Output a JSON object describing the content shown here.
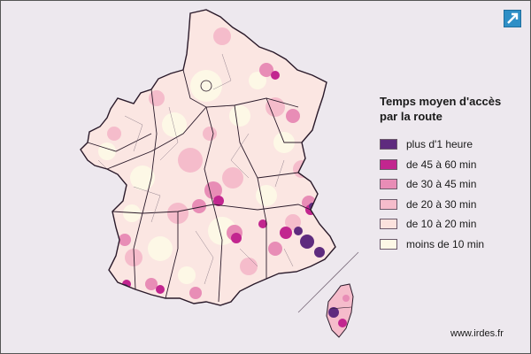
{
  "map": {
    "name": "France",
    "classes": [
      {
        "label": "plus d'1 heure",
        "color": "#5e2b7e"
      },
      {
        "label": "de 45 à 60 min",
        "color": "#c2268f"
      },
      {
        "label": "de 30 à 45 min",
        "color": "#e88db6"
      },
      {
        "label": "de 20 à 30 min",
        "color": "#f5bccb"
      },
      {
        "label": "de 10 à 20 min",
        "color": "#fbe2dd"
      },
      {
        "label": "moins de 10 min",
        "color": "#fdf8e6"
      }
    ]
  },
  "legend": {
    "title_line1": "Temps moyen d'accès",
    "title_line2": "par la route"
  },
  "footer": {
    "source": "www.irdes.fr"
  },
  "controls": {
    "expand_icon": "expand-arrow-icon"
  }
}
